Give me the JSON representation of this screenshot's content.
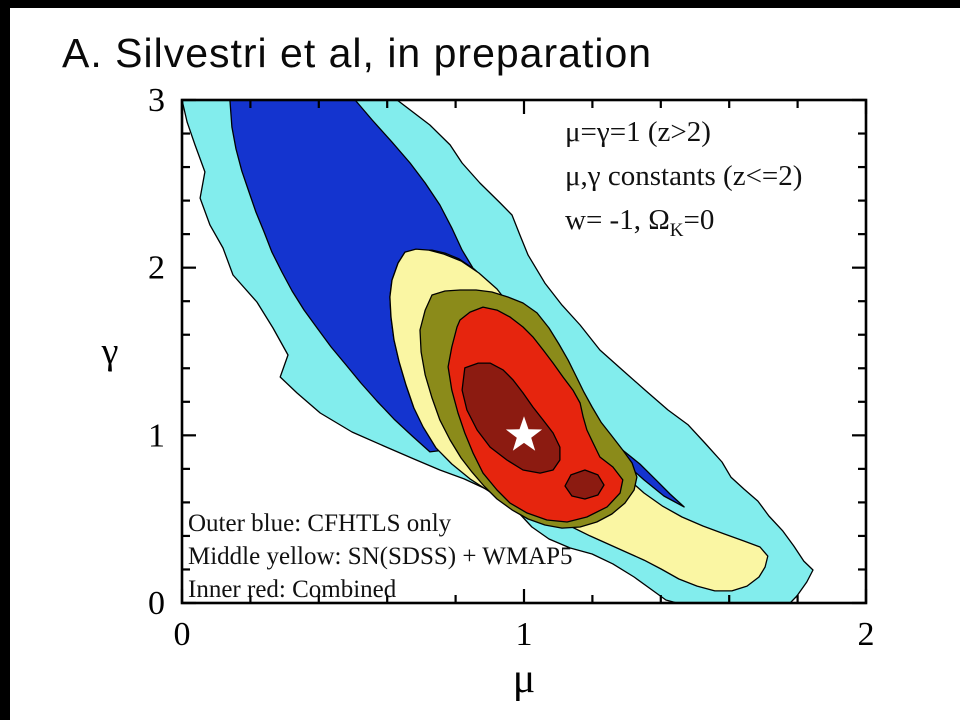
{
  "slide": {
    "title": "A. Silvestri et al, in preparation"
  },
  "legend": {
    "line1": "μ=γ=1 (z>2)",
    "line2": "μ,γ constants (z<=2)",
    "line3_pre": "w= -1, Ω",
    "line3_sub": "K",
    "line3_post": "=0"
  },
  "annotation": {
    "line1": "Outer blue: CFHTLS only",
    "line2": "Middle yellow: SN(SDSS) + WMAP5",
    "line3": "Inner red: Combined"
  },
  "chart_data": {
    "type": "contour",
    "xlabel": "μ",
    "ylabel": "γ",
    "xlim": [
      0,
      2
    ],
    "ylim": [
      0,
      3
    ],
    "x_ticks": [
      "0",
      "1",
      "2"
    ],
    "x_tick_values": [
      0,
      1,
      2
    ],
    "y_ticks": [
      "0",
      "1",
      "2",
      "3"
    ],
    "y_tick_values": [
      0,
      1,
      2,
      3
    ],
    "minor_tick_step": 0.2,
    "grid": false,
    "frame_color": "#000000",
    "contour_line_color": "#000000",
    "best_fit": {
      "mu": 1.0,
      "gamma": 1.0,
      "marker": "star",
      "color": "#ffffff"
    },
    "legend_position": "top-right-inside",
    "datasets": [
      {
        "name": "CFHTLS only",
        "colors": [
          "#82EDED",
          "#1434CF"
        ]
      },
      {
        "name": "SN(SDSS) + WMAP5",
        "colors": [
          "#FAF6A3",
          "#8B8B1A"
        ]
      },
      {
        "name": "Combined",
        "colors": [
          "#E6250E",
          "#8C1B11"
        ]
      }
    ],
    "regions": [
      {
        "id": "cfhtls-outer",
        "color": "#82EDED",
        "points": [
          [
            0.0,
            3.0
          ],
          [
            0.629,
            3.0
          ],
          [
            0.725,
            2.851
          ],
          [
            0.784,
            2.732
          ],
          [
            0.819,
            2.624
          ],
          [
            0.871,
            2.505
          ],
          [
            0.93,
            2.386
          ],
          [
            0.965,
            2.314
          ],
          [
            0.988,
            2.195
          ],
          [
            1.012,
            2.075
          ],
          [
            1.061,
            1.908
          ],
          [
            1.111,
            1.777
          ],
          [
            1.164,
            1.658
          ],
          [
            1.222,
            1.509
          ],
          [
            1.287,
            1.39
          ],
          [
            1.354,
            1.27
          ],
          [
            1.421,
            1.151
          ],
          [
            1.48,
            1.062
          ],
          [
            1.529,
            0.954
          ],
          [
            1.579,
            0.841
          ],
          [
            1.605,
            0.751
          ],
          [
            1.643,
            0.68
          ],
          [
            1.684,
            0.608
          ],
          [
            1.716,
            0.519
          ],
          [
            1.757,
            0.429
          ],
          [
            1.789,
            0.34
          ],
          [
            1.818,
            0.25
          ],
          [
            1.845,
            0.197
          ],
          [
            1.827,
            0.125
          ],
          [
            1.798,
            0.042
          ],
          [
            1.778,
            0.0
          ],
          [
            1.447,
            0.0
          ],
          [
            1.415,
            0.018
          ],
          [
            1.374,
            0.078
          ],
          [
            1.322,
            0.155
          ],
          [
            1.26,
            0.233
          ],
          [
            1.199,
            0.292
          ],
          [
            1.135,
            0.328
          ],
          [
            1.073,
            0.382
          ],
          [
            1.023,
            0.453
          ],
          [
            0.985,
            0.537
          ],
          [
            0.944,
            0.614
          ],
          [
            0.889,
            0.68
          ],
          [
            0.825,
            0.74
          ],
          [
            0.754,
            0.793
          ],
          [
            0.678,
            0.859
          ],
          [
            0.591,
            0.936
          ],
          [
            0.497,
            1.02
          ],
          [
            0.404,
            1.133
          ],
          [
            0.336,
            1.253
          ],
          [
            0.287,
            1.348
          ],
          [
            0.31,
            1.479
          ],
          [
            0.266,
            1.64
          ],
          [
            0.219,
            1.795
          ],
          [
            0.149,
            1.956
          ],
          [
            0.12,
            2.117
          ],
          [
            0.082,
            2.254
          ],
          [
            0.053,
            2.415
          ],
          [
            0.067,
            2.571
          ],
          [
            0.038,
            2.732
          ],
          [
            0.015,
            2.869
          ]
        ]
      },
      {
        "id": "cfhtls-inner",
        "color": "#1434CF",
        "points": [
          [
            0.14,
            3.0
          ],
          [
            0.506,
            3.0
          ],
          [
            0.556,
            2.881
          ],
          [
            0.614,
            2.749
          ],
          [
            0.667,
            2.624
          ],
          [
            0.711,
            2.505
          ],
          [
            0.754,
            2.374
          ],
          [
            0.789,
            2.237
          ],
          [
            0.819,
            2.105
          ],
          [
            0.854,
            1.986
          ],
          [
            0.889,
            1.867
          ],
          [
            0.927,
            1.747
          ],
          [
            0.965,
            1.64
          ],
          [
            1.006,
            1.527
          ],
          [
            1.044,
            1.431
          ],
          [
            1.079,
            1.342
          ],
          [
            1.12,
            1.253
          ],
          [
            1.167,
            1.145
          ],
          [
            1.222,
            1.032
          ],
          [
            1.284,
            0.919
          ],
          [
            1.339,
            0.829
          ],
          [
            1.386,
            0.734
          ],
          [
            1.427,
            0.65
          ],
          [
            1.468,
            0.573
          ],
          [
            1.409,
            0.638
          ],
          [
            1.351,
            0.734
          ],
          [
            1.295,
            0.835
          ],
          [
            1.246,
            0.924
          ],
          [
            1.205,
            1.008
          ],
          [
            1.167,
            1.097
          ],
          [
            1.129,
            1.199
          ],
          [
            1.094,
            1.294
          ],
          [
            1.061,
            1.39
          ],
          [
            1.029,
            1.497
          ],
          [
            0.997,
            1.604
          ],
          [
            0.968,
            1.706
          ],
          [
            0.936,
            1.813
          ],
          [
            0.898,
            1.908
          ],
          [
            0.854,
            1.992
          ],
          [
            0.81,
            2.052
          ],
          [
            0.769,
            2.087
          ],
          [
            0.731,
            2.105
          ],
          [
            0.69,
            2.105
          ],
          [
            0.652,
            2.093
          ],
          [
            0.632,
            2.028
          ],
          [
            0.614,
            1.926
          ],
          [
            0.608,
            1.825
          ],
          [
            0.611,
            1.706
          ],
          [
            0.62,
            1.569
          ],
          [
            0.635,
            1.437
          ],
          [
            0.655,
            1.3
          ],
          [
            0.678,
            1.163
          ],
          [
            0.725,
            1.032
          ],
          [
            0.766,
            0.912
          ],
          [
            0.725,
            0.901
          ],
          [
            0.673,
            0.996
          ],
          [
            0.62,
            1.097
          ],
          [
            0.57,
            1.205
          ],
          [
            0.523,
            1.312
          ],
          [
            0.48,
            1.419
          ],
          [
            0.436,
            1.527
          ],
          [
            0.395,
            1.64
          ],
          [
            0.357,
            1.747
          ],
          [
            0.322,
            1.861
          ],
          [
            0.292,
            1.974
          ],
          [
            0.263,
            2.093
          ],
          [
            0.24,
            2.213
          ],
          [
            0.216,
            2.332
          ],
          [
            0.196,
            2.451
          ],
          [
            0.175,
            2.577
          ],
          [
            0.158,
            2.708
          ],
          [
            0.146,
            2.839
          ]
        ]
      },
      {
        "id": "snwmap-outer",
        "color": "#FAF6A3",
        "points": [
          [
            0.652,
            2.093
          ],
          [
            0.632,
            2.028
          ],
          [
            0.614,
            1.926
          ],
          [
            0.608,
            1.825
          ],
          [
            0.611,
            1.706
          ],
          [
            0.62,
            1.569
          ],
          [
            0.635,
            1.437
          ],
          [
            0.655,
            1.3
          ],
          [
            0.678,
            1.163
          ],
          [
            0.705,
            1.05
          ],
          [
            0.743,
            0.924
          ],
          [
            0.789,
            0.829
          ],
          [
            0.842,
            0.74
          ],
          [
            0.901,
            0.662
          ],
          [
            0.97,
            0.61
          ],
          [
            1.026,
            0.555
          ],
          [
            1.085,
            0.507
          ],
          [
            1.14,
            0.453
          ],
          [
            1.193,
            0.4
          ],
          [
            1.246,
            0.352
          ],
          [
            1.298,
            0.304
          ],
          [
            1.351,
            0.256
          ],
          [
            1.401,
            0.203
          ],
          [
            1.453,
            0.143
          ],
          [
            1.506,
            0.101
          ],
          [
            1.558,
            0.072
          ],
          [
            1.608,
            0.072
          ],
          [
            1.652,
            0.101
          ],
          [
            1.687,
            0.155
          ],
          [
            1.705,
            0.215
          ],
          [
            1.713,
            0.28
          ],
          [
            1.69,
            0.334
          ],
          [
            1.643,
            0.37
          ],
          [
            1.585,
            0.412
          ],
          [
            1.523,
            0.459
          ],
          [
            1.462,
            0.513
          ],
          [
            1.404,
            0.579
          ],
          [
            1.351,
            0.656
          ],
          [
            1.301,
            0.746
          ],
          [
            1.254,
            0.835
          ],
          [
            1.216,
            0.924
          ],
          [
            1.181,
            1.026
          ],
          [
            1.149,
            1.127
          ],
          [
            1.117,
            1.235
          ],
          [
            1.085,
            1.342
          ],
          [
            1.056,
            1.443
          ],
          [
            1.026,
            1.551
          ],
          [
            0.994,
            1.658
          ],
          [
            0.962,
            1.765
          ],
          [
            0.921,
            1.873
          ],
          [
            0.868,
            1.968
          ],
          [
            0.816,
            2.04
          ],
          [
            0.766,
            2.081
          ],
          [
            0.722,
            2.105
          ],
          [
            0.684,
            2.111
          ]
        ]
      },
      {
        "id": "snwmap-inner",
        "color": "#8B8B1A",
        "points": [
          [
            0.731,
            1.837
          ],
          [
            0.711,
            1.747
          ],
          [
            0.696,
            1.628
          ],
          [
            0.699,
            1.497
          ],
          [
            0.711,
            1.36
          ],
          [
            0.731,
            1.223
          ],
          [
            0.754,
            1.091
          ],
          [
            0.784,
            0.972
          ],
          [
            0.816,
            0.865
          ],
          [
            0.848,
            0.781
          ],
          [
            0.883,
            0.698
          ],
          [
            0.921,
            0.62
          ],
          [
            0.965,
            0.555
          ],
          [
            1.012,
            0.501
          ],
          [
            1.061,
            0.465
          ],
          [
            1.111,
            0.447
          ],
          [
            1.164,
            0.453
          ],
          [
            1.213,
            0.483
          ],
          [
            1.257,
            0.531
          ],
          [
            1.295,
            0.596
          ],
          [
            1.322,
            0.674
          ],
          [
            1.33,
            0.751
          ],
          [
            1.316,
            0.835
          ],
          [
            1.289,
            0.912
          ],
          [
            1.257,
            0.996
          ],
          [
            1.225,
            1.079
          ],
          [
            1.199,
            1.169
          ],
          [
            1.175,
            1.258
          ],
          [
            1.152,
            1.354
          ],
          [
            1.129,
            1.449
          ],
          [
            1.102,
            1.545
          ],
          [
            1.073,
            1.64
          ],
          [
            1.038,
            1.73
          ],
          [
            0.997,
            1.789
          ],
          [
            0.953,
            1.825
          ],
          [
            0.906,
            1.855
          ],
          [
            0.86,
            1.867
          ],
          [
            0.813,
            1.867
          ],
          [
            0.769,
            1.861
          ]
        ]
      },
      {
        "id": "combined-outer",
        "color": "#E6250E",
        "points": [
          [
            0.804,
            1.646
          ],
          [
            0.789,
            1.527
          ],
          [
            0.778,
            1.408
          ],
          [
            0.789,
            1.27
          ],
          [
            0.807,
            1.133
          ],
          [
            0.827,
            1.014
          ],
          [
            0.851,
            0.895
          ],
          [
            0.88,
            0.775
          ],
          [
            0.921,
            0.674
          ],
          [
            0.959,
            0.596
          ],
          [
            1.009,
            0.537
          ],
          [
            1.067,
            0.495
          ],
          [
            1.126,
            0.483
          ],
          [
            1.184,
            0.513
          ],
          [
            1.243,
            0.573
          ],
          [
            1.281,
            0.656
          ],
          [
            1.289,
            0.734
          ],
          [
            1.26,
            0.811
          ],
          [
            1.222,
            0.871
          ],
          [
            1.202,
            0.954
          ],
          [
            1.184,
            1.032
          ],
          [
            1.173,
            1.109
          ],
          [
            1.164,
            1.193
          ],
          [
            1.143,
            1.27
          ],
          [
            1.114,
            1.348
          ],
          [
            1.085,
            1.431
          ],
          [
            1.056,
            1.509
          ],
          [
            1.026,
            1.587
          ],
          [
            0.997,
            1.646
          ],
          [
            0.959,
            1.706
          ],
          [
            0.921,
            1.747
          ],
          [
            0.88,
            1.765
          ],
          [
            0.842,
            1.735
          ],
          [
            0.813,
            1.688
          ]
        ]
      },
      {
        "id": "combined-inner-main",
        "color": "#8C1B11",
        "points": [
          [
            0.827,
            1.402
          ],
          [
            0.819,
            1.27
          ],
          [
            0.833,
            1.151
          ],
          [
            0.863,
            1.032
          ],
          [
            0.901,
            0.93
          ],
          [
            0.95,
            0.853
          ],
          [
            0.997,
            0.793
          ],
          [
            1.047,
            0.775
          ],
          [
            1.085,
            0.793
          ],
          [
            1.105,
            0.853
          ],
          [
            1.105,
            0.93
          ],
          [
            1.085,
            1.014
          ],
          [
            1.056,
            1.091
          ],
          [
            1.026,
            1.169
          ],
          [
            0.997,
            1.253
          ],
          [
            0.968,
            1.33
          ],
          [
            0.939,
            1.39
          ],
          [
            0.901,
            1.431
          ],
          [
            0.866,
            1.431
          ]
        ]
      },
      {
        "id": "combined-inner-secondary",
        "color": "#8C1B11",
        "points": [
          [
            1.12,
            0.698
          ],
          [
            1.14,
            0.638
          ],
          [
            1.178,
            0.62
          ],
          [
            1.216,
            0.644
          ],
          [
            1.234,
            0.704
          ],
          [
            1.216,
            0.764
          ],
          [
            1.178,
            0.793
          ],
          [
            1.137,
            0.764
          ]
        ]
      }
    ]
  }
}
